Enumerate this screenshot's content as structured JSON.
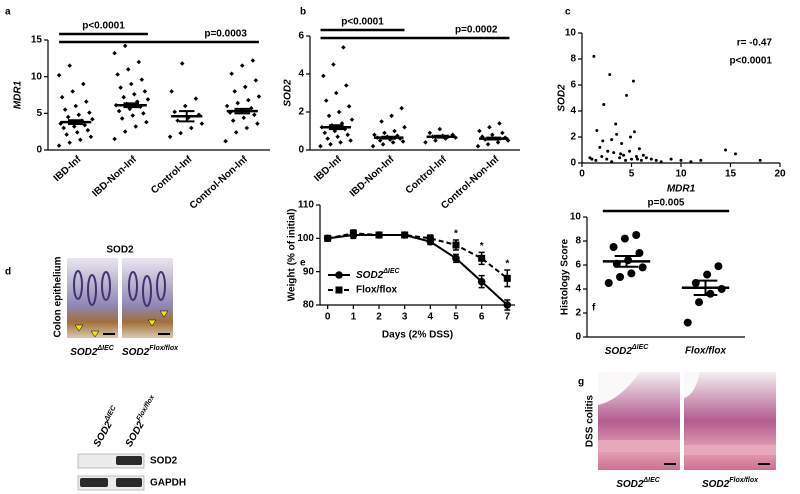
{
  "chart_data": [
    {
      "type": "dotplot",
      "panel": "a",
      "ylabel": "MDR1",
      "color": "#000000",
      "categories": [
        "IBD-Inf",
        "IBD-Non-Inf",
        "Control-Inf",
        "Control-Non-Inf"
      ],
      "groups": [
        {
          "points": [
            0.6,
            1.0,
            1.4,
            1.8,
            2.1,
            2.4,
            2.7,
            3.0,
            3.2,
            3.4,
            3.6,
            3.8,
            4.0,
            4.2,
            4.5,
            4.8,
            5.1,
            5.5,
            6.0,
            6.6,
            7.2,
            8.0,
            9.0,
            10.2,
            11.5
          ],
          "mean": 3.8,
          "sem": 0.25
        },
        {
          "points": [
            1.5,
            2.5,
            3.2,
            3.8,
            4.3,
            4.7,
            5.0,
            5.3,
            5.6,
            5.9,
            6.1,
            6.3,
            6.6,
            6.9,
            7.2,
            7.6,
            8.0,
            8.5,
            9.0,
            9.6,
            10.3,
            11.0,
            12.0,
            13.2,
            14.2
          ],
          "mean": 6.1,
          "sem": 0.25
        },
        {
          "points": [
            1.8,
            2.3,
            3.0,
            3.6,
            4.0,
            4.4,
            4.8,
            5.2,
            6.0,
            7.0,
            8.0,
            11.8
          ],
          "mean": 4.6,
          "sem": 0.7
        },
        {
          "points": [
            1.2,
            2.4,
            3.0,
            3.6,
            4.0,
            4.4,
            4.8,
            5.1,
            5.4,
            5.7,
            6.0,
            6.4,
            6.8,
            7.3,
            8.0,
            8.6,
            9.5,
            10.4,
            11.5,
            12.2
          ],
          "mean": 5.3,
          "sem": 0.3
        }
      ],
      "comparisons": [
        {
          "from": 0,
          "to": 1,
          "label": "p<0.0001"
        },
        {
          "from": 0,
          "to": 3,
          "label": "p=0.0003"
        }
      ],
      "ylim": [
        0,
        15
      ],
      "yticks": [
        0,
        5,
        10,
        15
      ]
    },
    {
      "type": "dotplot",
      "panel": "b",
      "ylabel": "SOD2",
      "color": "#000000",
      "categories": [
        "IBD-Inf",
        "IBD-Non-Inf",
        "Control-Inf",
        "Control-Non-Inf"
      ],
      "groups": [
        {
          "points": [
            0.2,
            0.3,
            0.4,
            0.5,
            0.6,
            0.7,
            0.8,
            0.9,
            1.0,
            1.1,
            1.2,
            1.3,
            1.4,
            1.6,
            1.8,
            2.0,
            2.3,
            2.6,
            3.0,
            3.4,
            3.9,
            4.5,
            5.4
          ],
          "mean": 1.2,
          "sem": 0.1
        },
        {
          "points": [
            0.2,
            0.3,
            0.4,
            0.45,
            0.5,
            0.55,
            0.6,
            0.65,
            0.7,
            0.75,
            0.8,
            0.9,
            1.0,
            1.2,
            1.5,
            1.8,
            2.2
          ],
          "mean": 0.65,
          "sem": 0.05
        },
        {
          "points": [
            0.4,
            0.5,
            0.6,
            0.65,
            0.7,
            0.75,
            0.8,
            0.9,
            1.1
          ],
          "mean": 0.7,
          "sem": 0.05
        },
        {
          "points": [
            0.2,
            0.3,
            0.4,
            0.5,
            0.55,
            0.6,
            0.65,
            0.7,
            0.8,
            0.9,
            1.0,
            1.2,
            1.4
          ],
          "mean": 0.6,
          "sem": 0.05
        }
      ],
      "comparisons": [
        {
          "from": 0,
          "to": 1,
          "label": "p<0.0001"
        },
        {
          "from": 0,
          "to": 3,
          "label": "p=0.0002"
        }
      ],
      "ylim": [
        0,
        6
      ],
      "yticks": [
        0,
        2,
        4,
        6
      ]
    },
    {
      "type": "scatter",
      "panel": "c",
      "xlabel": "MDR1",
      "ylabel": "SOD2",
      "color": "#000000",
      "x": [
        1.2,
        1.5,
        1.8,
        2.0,
        2.2,
        2.5,
        2.8,
        3.0,
        3.2,
        3.5,
        3.8,
        4.0,
        4.2,
        4.5,
        4.8,
        5.0,
        5.2,
        5.5,
        5.8,
        6.0,
        6.5,
        7.0,
        7.5,
        8.0,
        9.0,
        10.0,
        11.0,
        12.0,
        14.5,
        15.5,
        18.0,
        1.4,
        2.6,
        3.4,
        4.4,
        5.3,
        2.1,
        3.9,
        5.6,
        4.9,
        1.0,
        3.0,
        6.2,
        0.8
      ],
      "values": [
        8.2,
        2.5,
        1.2,
        0.5,
        4.5,
        0.3,
        6.8,
        1.8,
        0.8,
        2.2,
        0.4,
        1.5,
        0.6,
        5.2,
        0.9,
        0.3,
        6.3,
        0.5,
        1.1,
        0.2,
        0.4,
        0.3,
        0.2,
        0.1,
        0.3,
        0.2,
        0.1,
        0.2,
        1.0,
        0.7,
        0.2,
        0.2,
        0.9,
        3.0,
        0.2,
        2.4,
        1.7,
        0.7,
        0.3,
        2.0,
        0.3,
        0.1,
        0.6,
        0.4
      ],
      "annotations": [
        {
          "text": "r= -0.47"
        },
        {
          "text": "p<0.0001"
        }
      ],
      "xlim": [
        0,
        20
      ],
      "xticks": [
        0,
        5,
        10,
        15,
        20
      ],
      "ylim": [
        0,
        10
      ],
      "yticks": [
        0,
        2,
        4,
        6,
        8,
        10
      ]
    },
    {
      "type": "line",
      "panel": "e",
      "xlabel": "Days (2% DSS)",
      "ylabel": "Weight (% of initial)",
      "x": [
        0,
        1,
        2,
        3,
        4,
        5,
        6,
        7
      ],
      "series": [
        {
          "name": {
            "text": "SOD2",
            "sup": "ΔIEC"
          },
          "color": "#000000",
          "line_style": "solid",
          "marker": "circle",
          "values": [
            100,
            101,
            101,
            101,
            99,
            94,
            87,
            80
          ],
          "errors": [
            0.3,
            1,
            0.8,
            0.5,
            0.8,
            1.2,
            1.8,
            1.5
          ]
        },
        {
          "name": "Flox/flox",
          "color": "#000000",
          "line_style": "dashed",
          "marker": "square",
          "values": [
            100,
            101.5,
            101,
            101,
            100,
            98,
            94,
            88
          ],
          "errors": [
            0.3,
            1,
            0.8,
            0.5,
            1,
            1.5,
            1.8,
            2.5
          ]
        }
      ],
      "annotations": [
        {
          "text": "*",
          "x": 5
        },
        {
          "text": "*",
          "x": 6
        },
        {
          "text": "*",
          "x": 7
        }
      ],
      "legend": "lower left",
      "xlim": [
        -0.3,
        7.3
      ],
      "xticks": [
        0,
        1,
        2,
        3,
        4,
        5,
        6,
        7
      ],
      "ylim": [
        80,
        110
      ],
      "yticks": [
        80,
        90,
        100,
        110
      ]
    },
    {
      "type": "dotplot",
      "panel": "f",
      "ylabel": "Histology Score",
      "color": "#000000",
      "categories": [
        {
          "text": "SOD2",
          "sup": "ΔIEC"
        },
        "Flox/flox"
      ],
      "groups": [
        {
          "points": [
            4.5,
            5.0,
            5.3,
            5.8,
            6.1,
            6.4,
            7.0,
            7.5,
            8.2,
            8.5
          ],
          "mean": 6.3,
          "sem": 0.45
        },
        {
          "points": [
            1.2,
            2.9,
            3.6,
            4.0,
            4.5,
            5.2,
            5.9
          ],
          "mean": 4.1,
          "sem": 0.6
        }
      ],
      "comparisons": [
        {
          "from": 0,
          "to": 1,
          "label": "p=0.005"
        }
      ],
      "ylim": [
        0,
        10
      ],
      "yticks": [
        0,
        2,
        4,
        6,
        8,
        10
      ]
    }
  ],
  "panels": {
    "d": {
      "letter": "d",
      "title": "SOD2",
      "side_label": "Colon epithelium",
      "image_labels": [
        {
          "text": "SOD2",
          "sup": "ΔIEC"
        },
        {
          "text": "SOD2",
          "sup": "Flox/flox"
        }
      ],
      "blot": {
        "lanes": [
          {
            "text": "SOD2",
            "sup": "ΔIEC"
          },
          {
            "text": "SOD2",
            "sup": "Flox/flox"
          }
        ],
        "bands": [
          "SOD2",
          "GAPDH"
        ]
      }
    },
    "g": {
      "letter": "g",
      "side_label": "DSS colitis",
      "image_labels": [
        {
          "text": "SOD2",
          "sup": "ΔIEC"
        },
        {
          "text": "SOD2",
          "sup": "Flox/flox"
        }
      ]
    }
  }
}
